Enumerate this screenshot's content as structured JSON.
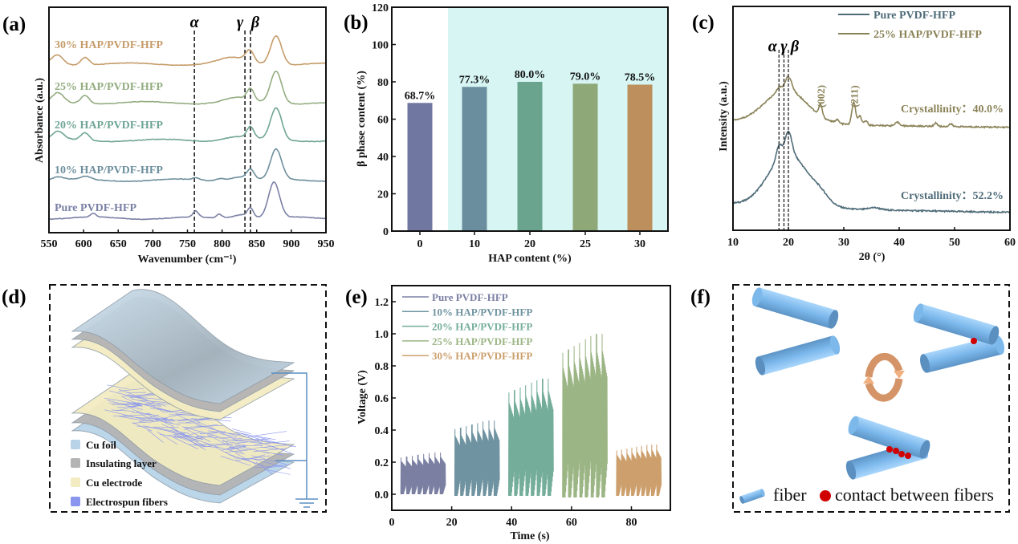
{
  "panel_labels": {
    "a": "(a)",
    "b": "(b)",
    "c": "(c)",
    "d": "(d)",
    "e": "(e)",
    "f": "(f)"
  },
  "chart_data": [
    {
      "panel": "a",
      "type": "line",
      "title": "",
      "xlabel": "Wavenumber (cm⁻¹)",
      "ylabel": "Absorbance (a.u.)",
      "xlim": [
        550,
        950
      ],
      "ylim": [
        0,
        6
      ],
      "xticks": [
        "550",
        "600",
        "650",
        "700",
        "750",
        "800",
        "850",
        "900",
        "950"
      ],
      "markers": [
        {
          "label": "α",
          "x": 760
        },
        {
          "label": "γ",
          "x": 833
        },
        {
          "label": "β",
          "x": 841
        }
      ],
      "series": [
        {
          "name": "Pure PVDF-HFP",
          "color": "#7a80a4",
          "offset": 0.38,
          "peaks": [
            [
              614,
              0.1,
              4
            ],
            [
              762,
              0.16,
              4
            ],
            [
              796,
              0.1,
              4
            ],
            [
              830,
              0.12,
              14
            ],
            [
              841,
              0.22,
              4
            ],
            [
              875,
              0.95,
              8
            ]
          ]
        },
        {
          "name": "10% HAP/PVDF-HFP",
          "color": "#6d8f9d",
          "offset": 1.39,
          "peaks": [
            [
              563,
              0.08,
              8
            ],
            [
              603,
              0.08,
              7
            ],
            [
              762,
              0.06,
              4
            ],
            [
              797,
              0.05,
              5
            ],
            [
              825,
              0.1,
              16
            ],
            [
              841,
              0.25,
              5
            ],
            [
              878,
              0.8,
              8
            ]
          ]
        },
        {
          "name": "20% HAP/PVDF-HFP",
          "color": "#6fa595",
          "offset": 2.45,
          "peaks": [
            [
              563,
              0.22,
              8
            ],
            [
              602,
              0.2,
              6
            ],
            [
              820,
              0.1,
              18
            ],
            [
              841,
              0.3,
              5
            ],
            [
              878,
              0.85,
              8
            ]
          ]
        },
        {
          "name": "25% HAP/PVDF-HFP",
          "color": "#93ad80",
          "offset": 3.45,
          "peaks": [
            [
              563,
              0.25,
              8
            ],
            [
              602,
              0.22,
              6
            ],
            [
              820,
              0.12,
              18
            ],
            [
              841,
              0.3,
              5
            ],
            [
              878,
              0.85,
              8
            ]
          ]
        },
        {
          "name": "30% HAP/PVDF-HFP",
          "color": "#c59c6a",
          "offset": 4.48,
          "peaks": [
            [
              562,
              0.25,
              8
            ],
            [
              602,
              0.2,
              6
            ],
            [
              815,
              0.15,
              20
            ],
            [
              840,
              0.3,
              6
            ],
            [
              878,
              0.78,
              8
            ]
          ]
        }
      ]
    },
    {
      "panel": "b",
      "type": "bar",
      "title": "",
      "xlabel": "HAP content (%)",
      "ylabel": "β phase content (%)",
      "ylim": [
        0,
        120
      ],
      "yticks": [
        "0",
        "20",
        "40",
        "60",
        "80",
        "100",
        "120"
      ],
      "categories": [
        "0",
        "10",
        "20",
        "25",
        "30"
      ],
      "values": [
        68.7,
        77.3,
        80.0,
        79.0,
        78.5
      ],
      "data_labels": [
        "68.7%",
        "77.3%",
        "80.0%",
        "79.0%",
        "78.5%"
      ],
      "colors": [
        "#7077a0",
        "#6a8e9e",
        "#6aa48e",
        "#8fa878",
        "#bd8f5c"
      ],
      "shade_color": "#d6f5f3"
    },
    {
      "panel": "c",
      "type": "line",
      "title": "",
      "xlabel": "2θ (°)",
      "ylabel": "Intensity (a.u.)",
      "xlim": [
        10,
        60
      ],
      "ylim": [
        0,
        1
      ],
      "xticks": [
        "10",
        "20",
        "30",
        "40",
        "50",
        "60"
      ],
      "markers": [
        {
          "label": "α",
          "x": 18.3
        },
        {
          "label": "γ",
          "x": 19.2
        },
        {
          "label": "β",
          "x": 20.0
        }
      ],
      "annotations": [
        {
          "text": "(002)",
          "x": 25.8
        },
        {
          "text": "(211)",
          "x": 31.8
        }
      ],
      "series": [
        {
          "name": "Pure PVDF-HFP",
          "color": "#4e6b78",
          "start": 0.12,
          "end": 0.08,
          "broad": [
            20,
            0.24,
            3.6
          ],
          "peaks": [
            [
              18.3,
              0.06,
              0.5
            ],
            [
              20.0,
              0.1,
              0.6
            ],
            [
              25.8,
              0.03,
              1.5
            ],
            [
              35.5,
              0.01,
              1
            ]
          ],
          "crystallinity": "Crystallinity：52.2%"
        },
        {
          "name": "25% HAP/PVDF-HFP",
          "color": "#8b8358",
          "start": 0.49,
          "end": 0.46,
          "broad": [
            19.6,
            0.15,
            3.8
          ],
          "peaks": [
            [
              18.3,
              0.02,
              0.4
            ],
            [
              20.0,
              0.06,
              0.6
            ],
            [
              25.8,
              0.05,
              0.3
            ],
            [
              28.8,
              0.015,
              0.3
            ],
            [
              31.8,
              0.1,
              0.35
            ],
            [
              32.9,
              0.04,
              0.3
            ],
            [
              34,
              0.02,
              0.3
            ],
            [
              39.7,
              0.015,
              0.4
            ],
            [
              46.6,
              0.015,
              0.3
            ],
            [
              49.3,
              0.012,
              0.3
            ]
          ],
          "crystallinity": "Crystallinity：40.0%"
        }
      ],
      "legend": "top-right"
    },
    {
      "panel": "e",
      "type": "line",
      "title": "",
      "xlabel": "Time (s)",
      "ylabel": "Voltage (V)",
      "xlim": [
        0,
        93
      ],
      "ylim": [
        -0.1,
        1.3
      ],
      "xticks": [
        "0",
        "20",
        "40",
        "60",
        "80"
      ],
      "yticks": [
        "0.0",
        "0.2",
        "0.4",
        "0.6",
        "0.8",
        "1.0",
        "1.2"
      ],
      "series": [
        {
          "name": "Pure PVDF-HFP",
          "color": "#7b80a3",
          "t": [
            3,
            18
          ],
          "peak": 0.26,
          "low": 0.0,
          "pulses": 8
        },
        {
          "name": "10% HAP/PVDF-HFP",
          "color": "#6f93a0",
          "t": [
            21,
            36
          ],
          "peak": 0.46,
          "low": -0.01,
          "pulses": 8
        },
        {
          "name": "20% HAP/PVDF-HFP",
          "color": "#74ad9a",
          "t": [
            39,
            54
          ],
          "peak": 0.72,
          "low": -0.01,
          "pulses": 8
        },
        {
          "name": "25% HAP/PVDF-HFP",
          "color": "#9bb584",
          "t": [
            57,
            72
          ],
          "peak": 1.0,
          "low": -0.02,
          "pulses": 8
        },
        {
          "name": "30% HAP/PVDF-HFP",
          "color": "#cc9f6c",
          "t": [
            75,
            90
          ],
          "peak": 0.31,
          "low": -0.01,
          "pulses": 9
        }
      ],
      "legend": "top-left"
    }
  ],
  "diagram_d": {
    "legend": [
      {
        "label": "Cu foil",
        "color": "#b8d3e8"
      },
      {
        "label": "Insulating layer",
        "color": "#b4b4b4"
      },
      {
        "label": "Cu electrode",
        "color": "#f3ecc2"
      },
      {
        "label": "Electrospun fibers",
        "color": "#8a96ee"
      }
    ]
  },
  "diagram_f": {
    "legend_fiber": "fiber",
    "legend_contact": "contact between fibers",
    "fiber_color": "#7db8ea",
    "contact_color": "#d10000",
    "cycle_arrow_color": "#e8a574"
  }
}
